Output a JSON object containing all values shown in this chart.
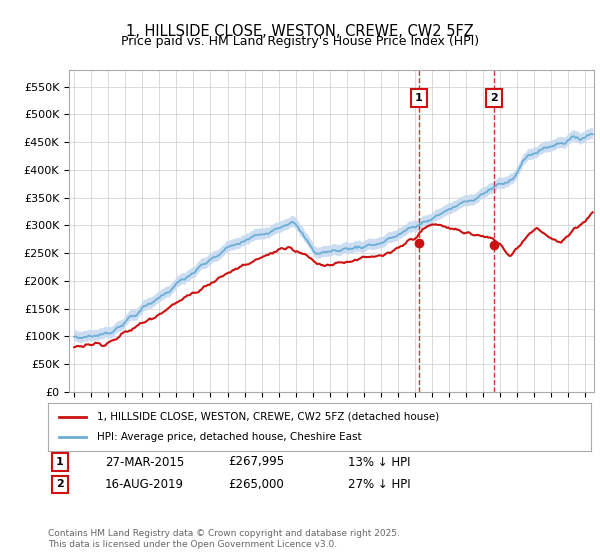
{
  "title": "1, HILLSIDE CLOSE, WESTON, CREWE, CW2 5FZ",
  "subtitle": "Price paid vs. HM Land Registry's House Price Index (HPI)",
  "ylabel_ticks": [
    "£0",
    "£50K",
    "£100K",
    "£150K",
    "£200K",
    "£250K",
    "£300K",
    "£350K",
    "£400K",
    "£450K",
    "£500K",
    "£550K"
  ],
  "ytick_values": [
    0,
    50000,
    100000,
    150000,
    200000,
    250000,
    300000,
    350000,
    400000,
    450000,
    500000,
    550000
  ],
  "ylim": [
    0,
    580000
  ],
  "xlim_start": 1994.7,
  "xlim_end": 2025.5,
  "marker1_x": 2015.23,
  "marker1_y": 267995,
  "marker1_label": "1",
  "marker1_date": "27-MAR-2015",
  "marker1_price": "£267,995",
  "marker1_hpi": "13% ↓ HPI",
  "marker2_x": 2019.62,
  "marker2_y": 265000,
  "marker2_label": "2",
  "marker2_date": "16-AUG-2019",
  "marker2_price": "£265,000",
  "marker2_hpi": "27% ↓ HPI",
  "shade_color": "#c8daf0",
  "hpi_color": "#6aaed6",
  "price_color": "#cc1111",
  "vline_color": "#cc1111",
  "legend_label_price": "1, HILLSIDE CLOSE, WESTON, CREWE, CW2 5FZ (detached house)",
  "legend_label_hpi": "HPI: Average price, detached house, Cheshire East",
  "footnote": "Contains HM Land Registry data © Crown copyright and database right 2025.\nThis data is licensed under the Open Government Licence v3.0.",
  "background_color": "#ffffff"
}
